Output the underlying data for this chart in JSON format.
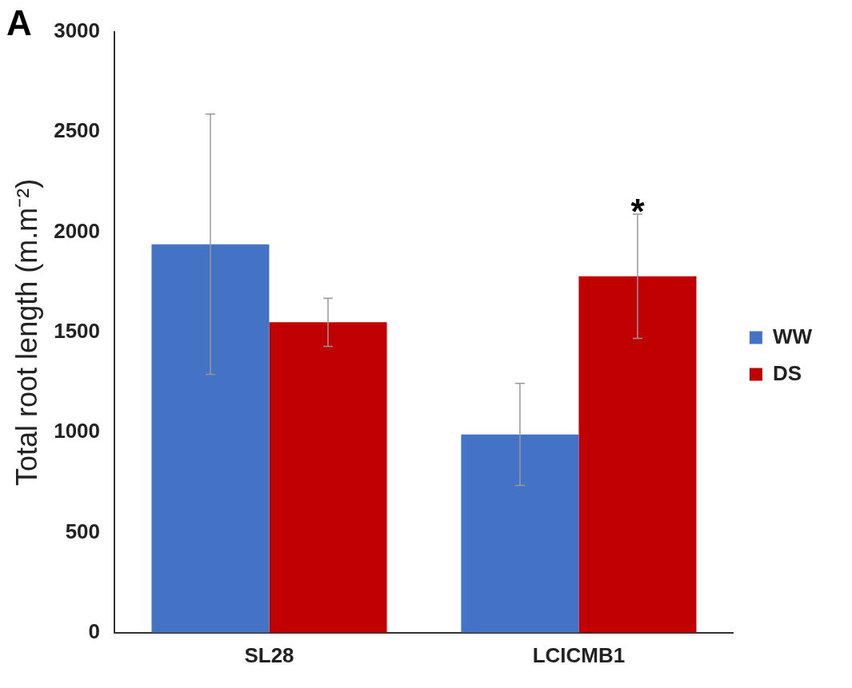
{
  "chart_data": {
    "type": "bar",
    "title": "A",
    "ylabel": "Total root length (m.m⁻²)",
    "categories": [
      "SL28",
      "LCICMB1"
    ],
    "series": [
      {
        "name": "WW",
        "color": "#4472c4",
        "values": [
          1940,
          990
        ],
        "errors": [
          650,
          255
        ]
      },
      {
        "name": "DS",
        "color": "#c00000",
        "values": [
          1550,
          1780
        ],
        "errors": [
          120,
          310
        ]
      }
    ],
    "ylim": [
      0,
      3000
    ],
    "yticks": [
      0,
      500,
      1000,
      1500,
      2000,
      2500,
      3000
    ],
    "grid": false,
    "legend": "right",
    "annotations": [
      "*"
    ]
  }
}
